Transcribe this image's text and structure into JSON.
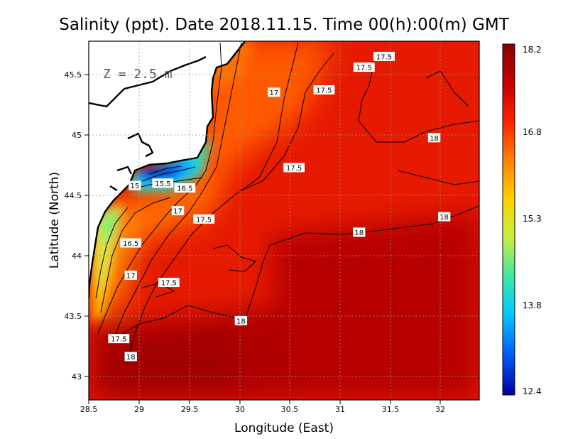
{
  "title": "Salinity (ppt). Date 2018.11.15. Time 00(h):00(m) GMT",
  "annotation": "Z = 2.5 m",
  "xlabel": "Longitude (East)",
  "ylabel": "Latitude (North)",
  "x_ticks": [
    "28.5",
    "29",
    "29.5",
    "30",
    "30.5",
    "31",
    "31.5",
    "32"
  ],
  "y_ticks": [
    "43",
    "43.5",
    "44",
    "44.5",
    "45",
    "45.5"
  ],
  "colorbar": {
    "tick_labels": [
      "18.2",
      "16.8",
      "15.3",
      "13.8",
      "12.4"
    ],
    "colors": [
      "#8b0000",
      "#c40000",
      "#ff2000",
      "#ff8000",
      "#ffd000",
      "#c8f040",
      "#40e8a0",
      "#00c8ff",
      "#0060ff",
      "#0000a0"
    ]
  },
  "chart_data": {
    "type": "heatmap",
    "variable": "Salinity",
    "units": "ppt",
    "depth_m": 2.5,
    "xlim": [
      28.5,
      32.4
    ],
    "ylim": [
      42.8,
      45.8
    ],
    "color_range": [
      12.4,
      18.2
    ],
    "grid": true,
    "contour_labels": [
      {
        "lon": 31.45,
        "lat": 45.67,
        "value": "17.5"
      },
      {
        "lon": 31.25,
        "lat": 45.58,
        "value": "17.5"
      },
      {
        "lon": 30.35,
        "lat": 45.37,
        "value": "17"
      },
      {
        "lon": 30.85,
        "lat": 45.39,
        "value": "17.5"
      },
      {
        "lon": 31.95,
        "lat": 44.99,
        "value": "18"
      },
      {
        "lon": 30.55,
        "lat": 44.74,
        "value": "17.5"
      },
      {
        "lon": 28.96,
        "lat": 44.59,
        "value": "15"
      },
      {
        "lon": 29.24,
        "lat": 44.61,
        "value": "15.5"
      },
      {
        "lon": 29.46,
        "lat": 44.57,
        "value": "16.5"
      },
      {
        "lon": 29.39,
        "lat": 44.38,
        "value": "17"
      },
      {
        "lon": 29.65,
        "lat": 44.31,
        "value": "17.5"
      },
      {
        "lon": 32.05,
        "lat": 44.33,
        "value": "18"
      },
      {
        "lon": 31.2,
        "lat": 44.2,
        "value": "18"
      },
      {
        "lon": 28.92,
        "lat": 44.11,
        "value": "16.5"
      },
      {
        "lon": 28.92,
        "lat": 43.84,
        "value": "17"
      },
      {
        "lon": 29.3,
        "lat": 43.78,
        "value": "17.5"
      },
      {
        "lon": 30.02,
        "lat": 43.46,
        "value": "18"
      },
      {
        "lon": 28.8,
        "lat": 43.31,
        "value": "17.5"
      },
      {
        "lon": 28.92,
        "lat": 43.16,
        "value": "18"
      }
    ]
  }
}
